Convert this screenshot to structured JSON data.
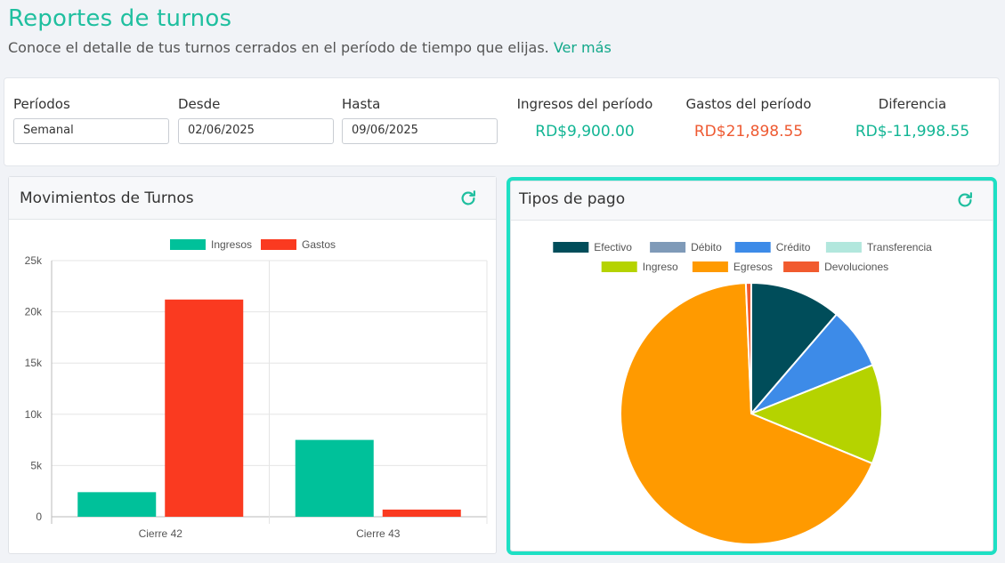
{
  "header": {
    "title": "Reportes de turnos",
    "subtitle": "Conoce el detalle de tus turnos cerrados en el período de tiempo que elijas.",
    "more_link": "Ver más"
  },
  "filters": {
    "periods_label": "Períodos",
    "periods_value": "Semanal",
    "from_label": "Desde",
    "from_value": "02/06/2025",
    "to_label": "Hasta",
    "to_value": "09/06/2025"
  },
  "summary": {
    "income_label": "Ingresos del período",
    "income_value": "RD$9,900.00",
    "expense_label": "Gastos del período",
    "expense_value": "RD$21,898.55",
    "diff_label": "Diferencia",
    "diff_value": "RD$-11,998.55"
  },
  "colors": {
    "accent": "#1fbf9f",
    "income": "#12b594",
    "expense": "#ee5a32",
    "highlight": "#1ee0c4"
  },
  "cards": {
    "movements_title": "Movimientos de Turnos",
    "payments_title": "Tipos de pago",
    "refresh_icon": "refresh-icon"
  },
  "chart_data": [
    {
      "type": "bar",
      "categories": [
        "Cierre 42",
        "Cierre 43"
      ],
      "series": [
        {
          "name": "Ingresos",
          "color": "#00c19a",
          "values": [
            2400,
            7500
          ]
        },
        {
          "name": "Gastos",
          "color": "#fa3a20",
          "values": [
            21200,
            700
          ]
        }
      ],
      "ylim": [
        0,
        25000
      ],
      "yticks": [
        "0",
        "5k",
        "10k",
        "15k",
        "20k",
        "25k"
      ],
      "grid": true,
      "legend": "top-center"
    },
    {
      "type": "pie",
      "labels": [
        "Efectivo",
        "Débito",
        "Crédito",
        "Transferencia",
        "Ingreso",
        "Egresos",
        "Devoluciones"
      ],
      "colors": [
        "#004d5a",
        "#7f9ab8",
        "#3d8be8",
        "#b2e7dd",
        "#b5d300",
        "#ff9a00",
        "#f15a2e"
      ],
      "values": [
        3400,
        0,
        2300,
        0,
        3700,
        20500,
        200
      ],
      "legend": "top-center"
    }
  ]
}
